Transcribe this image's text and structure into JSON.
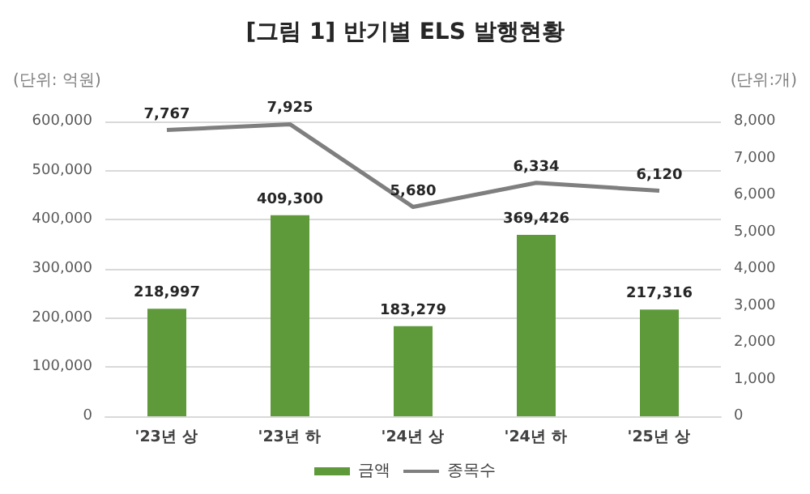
{
  "chart_data": {
    "type": "bar",
    "title": "[그림 1] 반기별 ELS 발행현황",
    "ylabel": "(단위: 억원)",
    "y2label": "(단위:개)",
    "categories": [
      "'23년 상",
      "'23년 하",
      "'24년 상",
      "'24년 하",
      "'25년 상"
    ],
    "series": [
      {
        "name": "금액",
        "color": "#5e9a3a",
        "values": [
          218997,
          409300,
          183279,
          369426,
          217316
        ],
        "value_labels": [
          "218,997",
          "409,300",
          "183,279",
          "369,426",
          "217,316"
        ]
      },
      {
        "name": "종목수",
        "type": "line",
        "axis": "y2",
        "color": "#7f7f7f",
        "values": [
          7767,
          7925,
          5680,
          6334,
          6120
        ],
        "value_labels": [
          "7,767",
          "7,925",
          "5,680",
          "6,334",
          "6,120"
        ]
      }
    ],
    "ylim": [
      0,
      600000
    ],
    "yticks": [
      0,
      {
        "value": 100000,
        "label": "100,000"
      },
      {
        "value": 200000,
        "label": "200,000"
      },
      {
        "value": 300000,
        "label": "300,000"
      },
      {
        "value": 400000,
        "label": "400,000"
      },
      {
        "value": 500000,
        "label": "500,000"
      },
      {
        "value": 600000,
        "label": "600,000"
      }
    ],
    "y2lim": [
      0,
      8000
    ],
    "y2ticks": [
      0,
      {
        "value": 1000,
        "label": "1,000"
      },
      {
        "value": 2000,
        "label": "2,000"
      },
      {
        "value": 3000,
        "label": "3,000"
      },
      {
        "value": 4000,
        "label": "4,000"
      },
      {
        "value": 5000,
        "label": "5,000"
      },
      {
        "value": 6000,
        "label": "6,000"
      },
      {
        "value": 7000,
        "label": "7,000"
      },
      {
        "value": 8000,
        "label": "8,000"
      }
    ],
    "grid": "y",
    "legend": "bottom",
    "marker": "none",
    "line_style": "solid"
  }
}
